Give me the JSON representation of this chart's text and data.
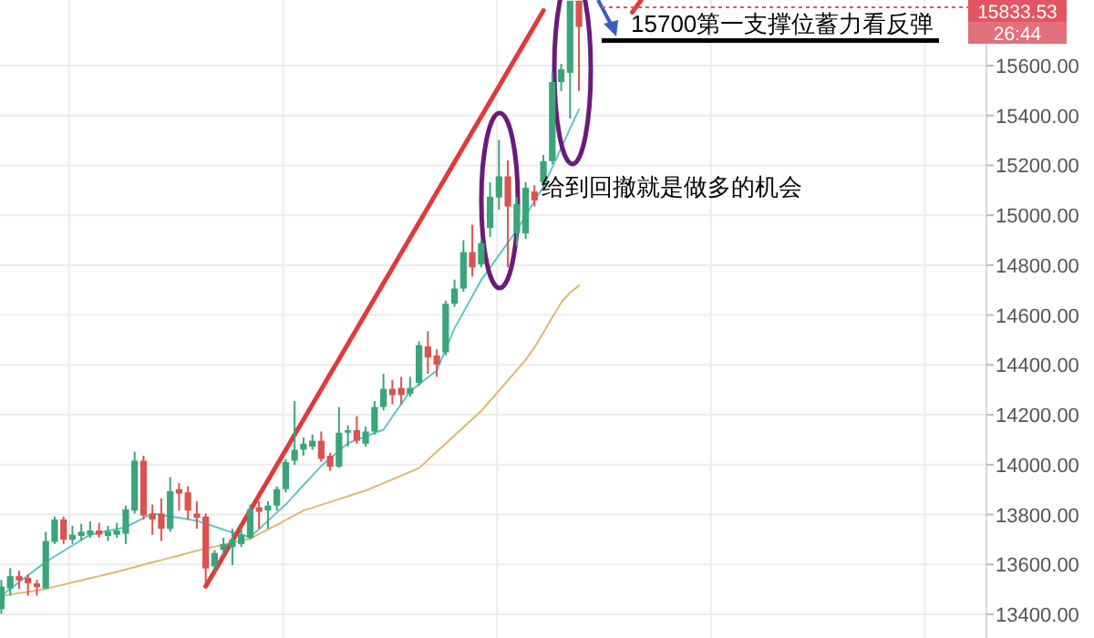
{
  "chart_data": {
    "type": "candlestick",
    "tick_labels": "y",
    "grid": true,
    "ylim": [
      13305,
      15863
    ],
    "yticks": [
      {
        "value": 13400,
        "label": "13400.00"
      },
      {
        "value": 13600,
        "label": "13600.00"
      },
      {
        "value": 13800,
        "label": "13800.00"
      },
      {
        "value": 14000,
        "label": "14000.00"
      },
      {
        "value": 14200,
        "label": "14200.00"
      },
      {
        "value": 14400,
        "label": "14400.00"
      },
      {
        "value": 14600,
        "label": "14600.00"
      },
      {
        "value": 14800,
        "label": "14800.00"
      },
      {
        "value": 15000,
        "label": "15000.00"
      },
      {
        "value": 15200,
        "label": "15200.00"
      },
      {
        "value": 15400,
        "label": "15400.00"
      },
      {
        "value": 15600,
        "label": "15600.00"
      }
    ],
    "categories": [
      null,
      null,
      null,
      null,
      null,
      null,
      null,
      null,
      null,
      null,
      null,
      null,
      null,
      null,
      null,
      null,
      null,
      null,
      null,
      null,
      null,
      null,
      null,
      null,
      null,
      null,
      null,
      null,
      null,
      null,
      null,
      null,
      null,
      null,
      null,
      null,
      null,
      null,
      null,
      null,
      null,
      null,
      null,
      null,
      null,
      null,
      null,
      null,
      null,
      null,
      null,
      null,
      null,
      null,
      null,
      null,
      null,
      null,
      null,
      null,
      null,
      null,
      null,
      null,
      null,
      null,
      null,
      null,
      null,
      null,
      null,
      null,
      null,
      null,
      null,
      null,
      null,
      null,
      null,
      null,
      null,
      null,
      null,
      null,
      null,
      null,
      null,
      null,
      null,
      null,
      null,
      null,
      null,
      null,
      null,
      null,
      null,
      null,
      null,
      null,
      null,
      null,
      null,
      null,
      null,
      null,
      null,
      null,
      null,
      null,
      null
    ],
    "ohlc": [
      [
        13421,
        13538,
        13402,
        13511
      ],
      [
        13504,
        13585,
        13475,
        13553
      ],
      [
        13553,
        13575,
        13502,
        13536
      ],
      [
        13546,
        13560,
        13475,
        13524
      ],
      [
        13524,
        13538,
        13475,
        13509
      ],
      [
        13504,
        13731,
        13500,
        13694
      ],
      [
        13690,
        13792,
        13682,
        13780
      ],
      [
        13780,
        13792,
        13682,
        13699
      ],
      [
        13699,
        13755,
        13682,
        13719
      ],
      [
        13714,
        13763,
        13694,
        13731
      ],
      [
        13719,
        13772,
        13707,
        13736
      ],
      [
        13736,
        13767,
        13707,
        13719
      ],
      [
        13714,
        13755,
        13694,
        13731
      ],
      [
        13719,
        13767,
        13707,
        13736
      ],
      [
        13723,
        13836,
        13682,
        13821
      ],
      [
        13816,
        14052,
        13804,
        14016
      ],
      [
        14016,
        14036,
        13780,
        13796
      ],
      [
        13804,
        13840,
        13719,
        13780
      ],
      [
        13804,
        13865,
        13694,
        13743
      ],
      [
        13743,
        13950,
        13731,
        13894
      ],
      [
        13902,
        13926,
        13816,
        13884
      ],
      [
        13889,
        13913,
        13780,
        13816
      ],
      [
        13804,
        13853,
        13743,
        13787
      ],
      [
        13792,
        13804,
        13524,
        13584
      ],
      [
        13592,
        13658,
        13573,
        13646
      ],
      [
        13658,
        13707,
        13633,
        13682
      ],
      [
        13670,
        13743,
        13597,
        13699
      ],
      [
        13682,
        13743,
        13670,
        13719
      ],
      [
        13707,
        13840,
        13699,
        13821
      ],
      [
        13829,
        13853,
        13743,
        13811
      ],
      [
        13816,
        13853,
        13743,
        13836
      ],
      [
        13836,
        13913,
        13816,
        13902
      ],
      [
        13902,
        14023,
        13889,
        14011
      ],
      [
        14016,
        14255,
        13999,
        14060
      ],
      [
        14060,
        14109,
        14036,
        14084
      ],
      [
        14072,
        14121,
        14060,
        14096
      ],
      [
        14096,
        14133,
        14011,
        14023
      ],
      [
        14036,
        14048,
        13975,
        13992
      ],
      [
        13992,
        14231,
        13987,
        14128
      ],
      [
        14128,
        14158,
        14072,
        14138
      ],
      [
        14138,
        14194,
        14084,
        14096
      ],
      [
        14084,
        14153,
        14072,
        14133
      ],
      [
        14133,
        14255,
        14121,
        14231
      ],
      [
        14231,
        14364,
        14218,
        14304
      ],
      [
        14304,
        14340,
        14242,
        14279
      ],
      [
        14308,
        14352,
        14242,
        14279
      ],
      [
        14284,
        14352,
        14272,
        14308
      ],
      [
        14328,
        14494,
        14316,
        14479
      ],
      [
        14474,
        14535,
        14364,
        14430
      ],
      [
        14438,
        14462,
        14352,
        14401
      ],
      [
        14450,
        14657,
        14438,
        14645
      ],
      [
        14645,
        14742,
        14633,
        14706
      ],
      [
        14706,
        14900,
        14693,
        14852
      ],
      [
        14852,
        14962,
        14754,
        14791
      ],
      [
        14803,
        14900,
        14791,
        14888
      ],
      [
        14949,
        15132,
        14913,
        15074
      ],
      [
        15071,
        15302,
        15022,
        15156
      ],
      [
        15156,
        15220,
        14791,
        15035
      ],
      [
        14927,
        15074,
        14876,
        15044
      ],
      [
        14927,
        15132,
        14905,
        15110
      ],
      [
        15095,
        15120,
        15035,
        15059
      ],
      [
        15132,
        15242,
        15108,
        15217
      ],
      [
        15217,
        15571,
        15205,
        15534
      ],
      [
        15534,
        15607,
        15498,
        15585
      ],
      [
        15571,
        15860,
        15388,
        15860
      ],
      [
        15860,
        15860,
        15498,
        15755
      ],
      null,
      null,
      null,
      null,
      null,
      null,
      null,
      null,
      null,
      null,
      null,
      null,
      null,
      null,
      null,
      null,
      null,
      null,
      null,
      null,
      null,
      null,
      null,
      null,
      null,
      null,
      null,
      null,
      null,
      null,
      null,
      null,
      null,
      null,
      null,
      null,
      null,
      null,
      null,
      null,
      null,
      null,
      null,
      null,
      null
    ],
    "series": [
      {
        "type": "line",
        "color": "#5fc4c9",
        "values": [
          13475,
          13502,
          13529,
          13556,
          13583,
          13610,
          13632,
          13654,
          13676,
          13698,
          13719,
          13727,
          13735,
          13742,
          13750,
          13768,
          13786,
          13804,
          13798,
          13792,
          13787,
          13781,
          13775,
          13763,
          13752,
          13740,
          13728,
          13719,
          13710,
          13742,
          13775,
          13808,
          13840,
          13879,
          13918,
          13956,
          13995,
          14025,
          14056,
          14086,
          14100,
          14113,
          14127,
          14140,
          14192,
          14243,
          14295,
          14322,
          14350,
          14377,
          14462,
          14547,
          14611,
          14676,
          14740,
          14790,
          14840,
          14890,
          14940,
          14998,
          15057,
          15115,
          15192,
          15270,
          15347,
          15424,
          null,
          null,
          null,
          null,
          null,
          null,
          null,
          null,
          null,
          null,
          null,
          null,
          null,
          null,
          null,
          null,
          null,
          null,
          null,
          null,
          null,
          null,
          null,
          null,
          null,
          null,
          null,
          null,
          null,
          null,
          null,
          null,
          null,
          null,
          null,
          null,
          null,
          null,
          null,
          null,
          null,
          null,
          null,
          null,
          null
        ]
      },
      {
        "type": "line",
        "color": "#e0b870",
        "values": [
          13473,
          13479,
          13485,
          13490,
          13496,
          13502,
          13511,
          13519,
          13528,
          13536,
          13545,
          13553,
          13562,
          13570,
          13580,
          13589,
          13599,
          13608,
          13617,
          13627,
          13636,
          13646,
          13655,
          13663,
          13671,
          13679,
          13687,
          13695,
          13703,
          13722,
          13740,
          13759,
          13778,
          13797,
          13816,
          13827,
          13839,
          13850,
          13862,
          13873,
          13885,
          13896,
          13911,
          13926,
          13941,
          13956,
          13971,
          13986,
          14019,
          14052,
          14084,
          14117,
          14150,
          14183,
          14215,
          14256,
          14297,
          14338,
          14379,
          14420,
          14470,
          14530,
          14590,
          14650,
          14690,
          14718,
          null,
          null,
          null,
          null,
          null,
          null,
          null,
          null,
          null,
          null,
          null,
          null,
          null,
          null,
          null,
          null,
          null,
          null,
          null,
          null,
          null,
          null,
          null,
          null,
          null,
          null,
          null,
          null,
          null,
          null,
          null,
          null,
          null,
          null,
          null,
          null,
          null,
          null,
          null,
          null,
          null,
          null,
          null,
          null,
          null
        ]
      },
      {
        "type": "line",
        "color": "#e03a3a",
        "values": [
          null,
          null,
          null,
          null,
          null,
          null,
          null,
          null,
          null,
          null,
          null,
          null,
          null,
          null,
          null,
          null,
          null,
          null,
          null,
          null,
          null,
          null,
          null,
          13512,
          13573,
          13634,
          13694,
          13755,
          13816,
          13877,
          13937,
          13998,
          14059,
          14120,
          14180,
          14241,
          14302,
          14363,
          14423,
          14484,
          14545,
          14606,
          14666,
          14727,
          14788,
          14849,
          14909,
          14970,
          15031,
          15092,
          15152,
          15213,
          15274,
          15335,
          15395,
          15456,
          15517,
          15578,
          15638,
          15699,
          15760,
          15821,
          null,
          null,
          null,
          null,
          null,
          null,
          null,
          null,
          null,
          null,
          null,
          null,
          null,
          null,
          null,
          null,
          null,
          null,
          null,
          null,
          null,
          null,
          null,
          null,
          null,
          null,
          null,
          null,
          null,
          null,
          null,
          null,
          null,
          null,
          null,
          null,
          null,
          null,
          null,
          null,
          null,
          null,
          null,
          null,
          null,
          null,
          null,
          null,
          null
        ]
      },
      {
        "type": "line",
        "color": "#e03a3a",
        "values": [
          null,
          null,
          null,
          null,
          null,
          null,
          null,
          null,
          null,
          null,
          null,
          null,
          null,
          null,
          null,
          null,
          null,
          null,
          null,
          null,
          null,
          null,
          null,
          null,
          null,
          null,
          null,
          null,
          null,
          null,
          null,
          null,
          null,
          null,
          null,
          null,
          null,
          null,
          null,
          null,
          null,
          null,
          null,
          null,
          null,
          null,
          null,
          null,
          null,
          null,
          null,
          null,
          null,
          null,
          null,
          null,
          null,
          null,
          null,
          null,
          null,
          null,
          null,
          null,
          null,
          null,
          null,
          null,
          null,
          null,
          null,
          15814,
          15863,
          null,
          null,
          null,
          null,
          null,
          null,
          null,
          null,
          null,
          null,
          null,
          null,
          null,
          null,
          null,
          null,
          null,
          null,
          null,
          null,
          null,
          null,
          null,
          null,
          null,
          null,
          null,
          null,
          null,
          null,
          null,
          null,
          null,
          null,
          null,
          null,
          null,
          null
        ]
      }
    ],
    "ref_lines": [
      {
        "axis": "y",
        "value": 15700,
        "label": "15700第一支撑位蓄力看反弹",
        "color": "#000000",
        "line_style": "solid"
      },
      {
        "axis": "y",
        "value": 15833.53,
        "label": "15833.53",
        "color": "#e25563",
        "line_style": "dotted"
      }
    ],
    "annotations": [
      "给到回撤就是做多的机会",
      "26:44"
    ]
  }
}
